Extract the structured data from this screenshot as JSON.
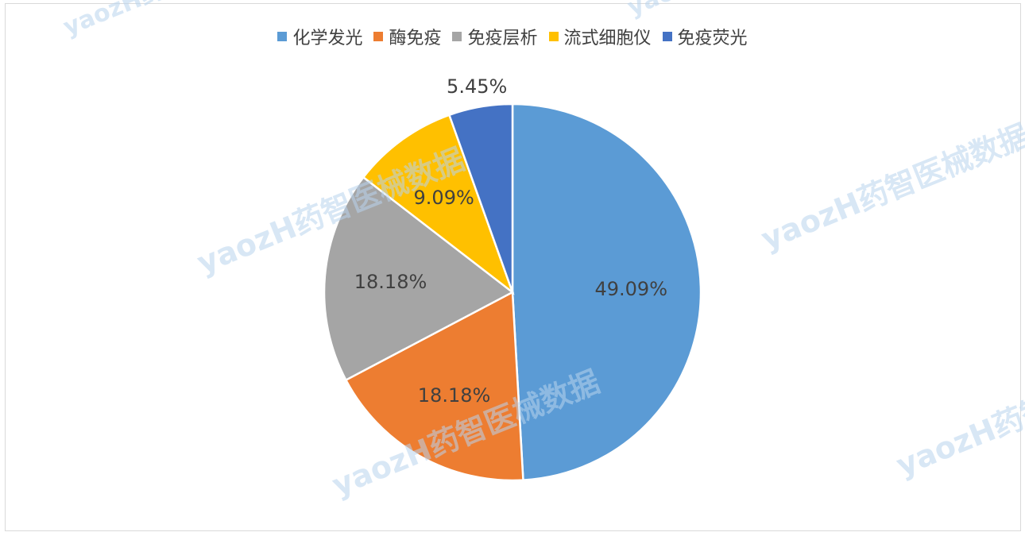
{
  "chart_data": {
    "type": "pie",
    "title": "",
    "categories": [
      "化学发光",
      "酶免疫",
      "免疫层析",
      "流式细胞仪",
      "免疫荧光"
    ],
    "values": [
      49.09,
      18.18,
      18.18,
      9.09,
      5.45
    ],
    "labels": [
      "49.09%",
      "18.18%",
      "18.18%",
      "9.09%",
      "5.45%"
    ],
    "colors": [
      "#5b9bd5",
      "#ed7d31",
      "#a5a5a5",
      "#ffc000",
      "#4472c4"
    ],
    "legend_position": "top",
    "start_angle": "12 o'clock, clockwise"
  },
  "watermark": {
    "text": "yaozH药智医械数据",
    "color": "#b9d4ee"
  }
}
